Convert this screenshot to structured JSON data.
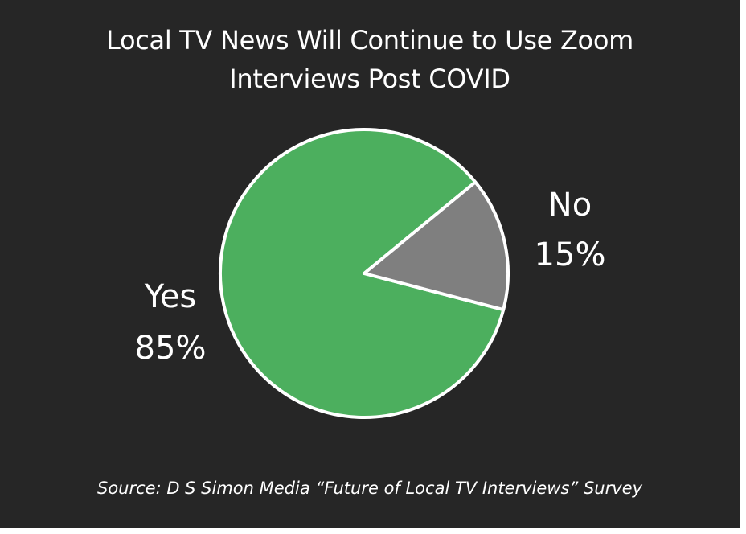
{
  "chart_data": {
    "type": "pie",
    "title_lines": [
      "Local TV News Will Continue to Use Zoom",
      "Interviews Post COVID"
    ],
    "slices": [
      {
        "label": "Yes",
        "value": 85,
        "display": "85%",
        "color": "#4caf5e"
      },
      {
        "label": "No",
        "value": 15,
        "display": "15%",
        "color": "#7f7f7f"
      }
    ],
    "source": "Source: D S Simon Media “Future of Local TV Interviews” Survey"
  },
  "colors": {
    "background": "#262626",
    "slice_border": "#ffffff",
    "text": "#ffffff"
  }
}
